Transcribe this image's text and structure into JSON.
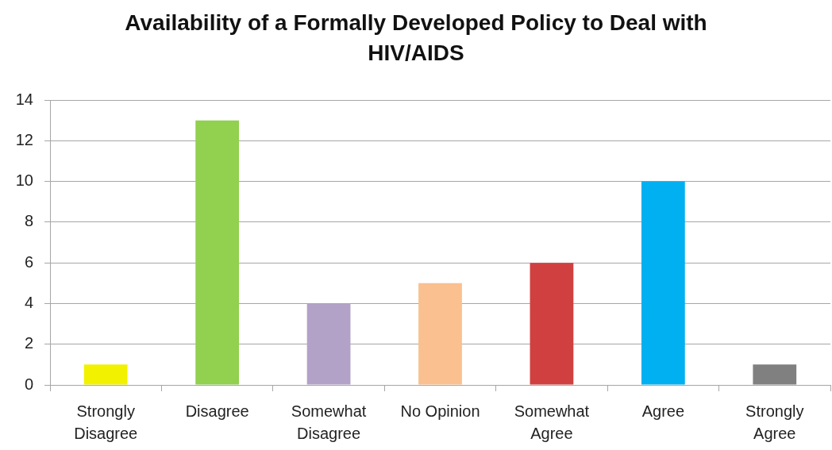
{
  "chart_data": {
    "type": "bar",
    "title": "Availability of a Formally Developed Policy to Deal with HIV/AIDS",
    "categories": [
      "Strongly Disagree",
      "Disagree",
      "Somewhat Disagree",
      "No Opinion",
      "Somewhat Agree",
      "Agree",
      "Strongly Agree"
    ],
    "values": [
      1,
      13,
      4,
      5,
      6,
      10,
      1
    ],
    "colors": [
      "#f2f200",
      "#92d050",
      "#b3a2c7",
      "#fac090",
      "#d04040",
      "#00b0f0",
      "#808080"
    ],
    "ylim": [
      0,
      14
    ],
    "yticks": [
      0,
      2,
      4,
      6,
      8,
      10,
      12,
      14
    ],
    "grid": "y"
  }
}
